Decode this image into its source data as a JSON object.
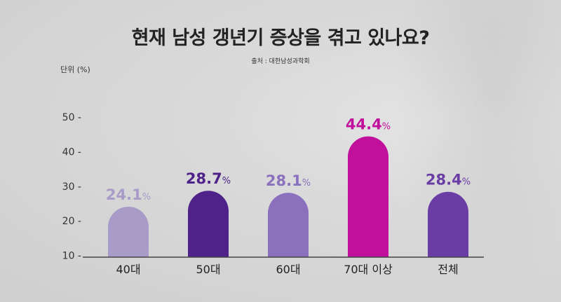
{
  "chart_data": {
    "type": "bar",
    "title": "현재 남성 갱년기 증상을 겪고 있나요?",
    "subtitle": "출처 : 대한남성과학회",
    "ylabel": "단위 (%)",
    "ylim": [
      0,
      50
    ],
    "yticks": [
      "10",
      "20",
      "30",
      "40",
      "50"
    ],
    "categories": [
      "40대",
      "50대",
      "60대",
      "70대 이상",
      "전체"
    ],
    "values": [
      24.1,
      28.7,
      28.1,
      44.4,
      28.4
    ],
    "value_labels": [
      "24.1",
      "28.7",
      "28.1",
      "44.4",
      "28.4"
    ],
    "value_unit": "%",
    "bar_colors": [
      "#a99bc8",
      "#4e2288",
      "#8a70bd",
      "#c0109c",
      "#6a3da5"
    ],
    "label_colors": [
      "#a99bc8",
      "#4e2288",
      "#8a70bd",
      "#c0109c",
      "#6a3da5"
    ],
    "grid": false,
    "legend": "none"
  }
}
